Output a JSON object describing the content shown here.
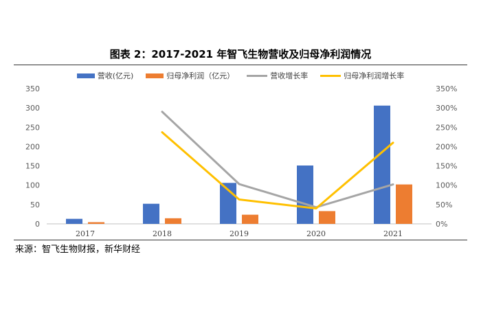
{
  "title": "图表 2：2017-2021 年智飞生物营收及归母净利润情况",
  "source": "来源：智飞生物财报，新华财经",
  "chart_data": {
    "type": "bar",
    "categories": [
      "2017",
      "2018",
      "2019",
      "2020",
      "2021"
    ],
    "series": [
      {
        "name": "营收(亿元)",
        "kind": "bar",
        "axis": "left",
        "color": "#4472C4",
        "values": [
          13,
          52,
          106,
          151,
          306
        ]
      },
      {
        "name": "归母净利润（亿元）",
        "kind": "bar",
        "axis": "left",
        "color": "#ED7D31",
        "values": [
          4.4,
          14.5,
          23.7,
          33,
          102
        ]
      },
      {
        "name": "营收增长率",
        "kind": "line",
        "axis": "right",
        "color": "#A5A5A5",
        "values": [
          null,
          2.9,
          1.03,
          0.43,
          1.02
        ]
      },
      {
        "name": "归母净利润增长率",
        "kind": "line",
        "axis": "right",
        "color": "#FFC000",
        "values": [
          null,
          2.37,
          0.63,
          0.4,
          2.1
        ]
      }
    ],
    "left_axis": {
      "ylim": [
        0,
        350
      ],
      "ticks": [
        "0",
        "50",
        "100",
        "150",
        "200",
        "250",
        "300",
        "350"
      ]
    },
    "right_axis": {
      "ylim": [
        0,
        3.5
      ],
      "ticks": [
        "0%",
        "50%",
        "100%",
        "150%",
        "200%",
        "250%",
        "300%",
        "350%"
      ]
    },
    "legend_position": "top",
    "grid": false
  }
}
